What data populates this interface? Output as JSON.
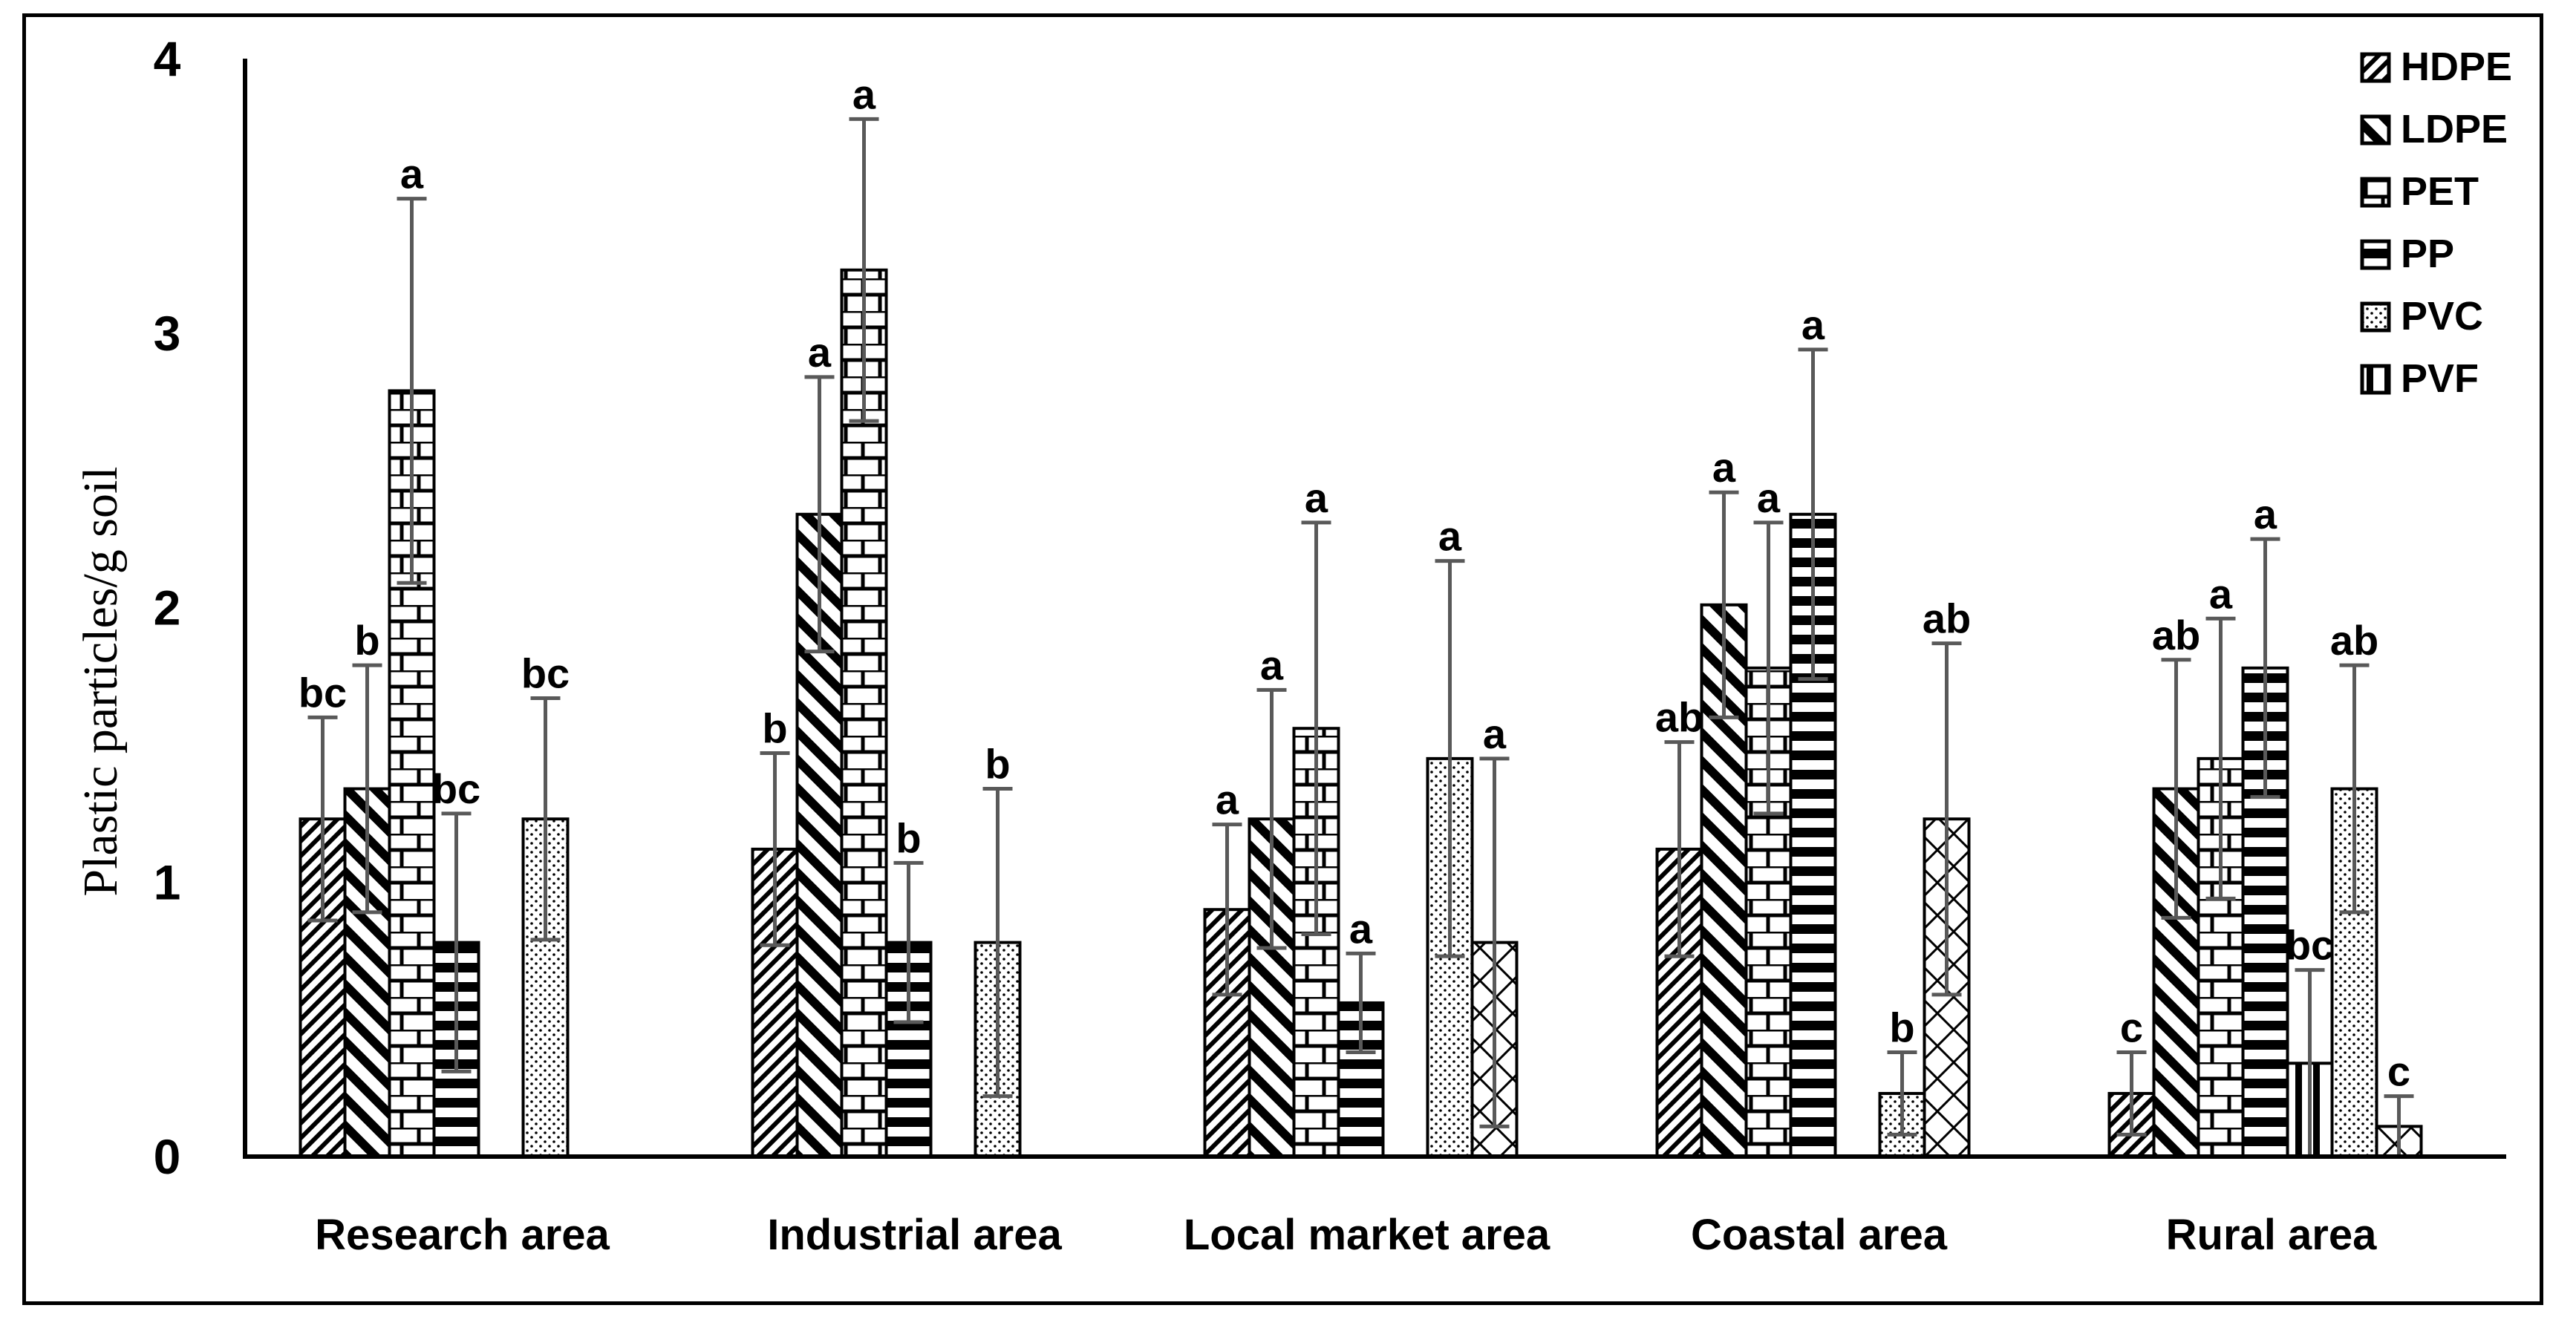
{
  "chart_data": {
    "type": "bar",
    "title": "",
    "xlabel": "",
    "ylabel": "Plastic particles/g soil",
    "ylim": [
      0,
      4
    ],
    "yticks": [
      "0",
      "1",
      "2",
      "3",
      "4"
    ],
    "grid": false,
    "legend_position": "top-right",
    "error_bars": true,
    "categories": [
      "Research area",
      "Industrial area",
      "Local market area",
      "Coastal area",
      "Rural area"
    ],
    "series": [
      {
        "name": "HDPE",
        "pattern": "diagonal-up",
        "values": [
          1.23,
          1.12,
          0.9,
          1.12,
          0.23
        ],
        "error": [
          0.37,
          0.35,
          0.31,
          0.39,
          0.15
        ],
        "letters": [
          "bc",
          "b",
          "a",
          "ab",
          "c"
        ]
      },
      {
        "name": "LDPE",
        "pattern": "diagonal-down-bold",
        "values": [
          1.34,
          2.34,
          1.23,
          2.01,
          1.34
        ],
        "error": [
          0.45,
          0.5,
          0.47,
          0.41,
          0.47
        ],
        "letters": [
          "b",
          "a",
          "a",
          "a",
          "ab"
        ]
      },
      {
        "name": "PET",
        "pattern": "brick",
        "values": [
          2.79,
          3.23,
          1.56,
          1.78,
          1.45
        ],
        "error": [
          0.7,
          0.55,
          0.75,
          0.53,
          0.51
        ],
        "letters": [
          "a",
          "a",
          "a",
          "a",
          "a"
        ]
      },
      {
        "name": "PP",
        "pattern": "horizontal-bold",
        "values": [
          0.78,
          0.78,
          0.56,
          2.34,
          1.78
        ],
        "error": [
          0.47,
          0.29,
          0.18,
          0.6,
          0.47
        ],
        "letters": [
          "bc",
          "b",
          "a",
          "a",
          "a"
        ]
      },
      {
        "name": "PVF",
        "pattern": "vertical-bold",
        "values": [
          0,
          0,
          0,
          0,
          0.34
        ],
        "error": [
          0,
          0,
          0,
          0,
          0.34
        ],
        "letters": [
          "",
          "",
          "",
          "",
          "bc"
        ]
      },
      {
        "name": "PVC",
        "pattern": "dots",
        "values": [
          1.23,
          0.78,
          1.45,
          0.23,
          1.34
        ],
        "error": [
          0.44,
          0.56,
          0.72,
          0.15,
          0.45
        ],
        "letters": [
          "bc",
          "b",
          "a",
          "b",
          "ab"
        ]
      },
      {
        "name": "",
        "pattern": "crosshatch",
        "values": [
          0,
          0,
          0.78,
          1.23,
          0.11
        ],
        "error": [
          0,
          0,
          0.67,
          0.64,
          0.11
        ],
        "letters": [
          "",
          "",
          "a",
          "ab",
          "c"
        ]
      }
    ],
    "legend": [
      {
        "name": "HDPE",
        "pattern": "diagonal-up"
      },
      {
        "name": "LDPE",
        "pattern": "diagonal-down-bold"
      },
      {
        "name": "PET",
        "pattern": "brick"
      },
      {
        "name": "PP",
        "pattern": "horizontal-bold"
      },
      {
        "name": "PVC",
        "pattern": "dots"
      },
      {
        "name": "PVF",
        "pattern": "vertical-bold"
      }
    ],
    "colors": {
      "bar_outline": "#000000",
      "error_bar": "#595959",
      "axis": "#000000"
    }
  }
}
